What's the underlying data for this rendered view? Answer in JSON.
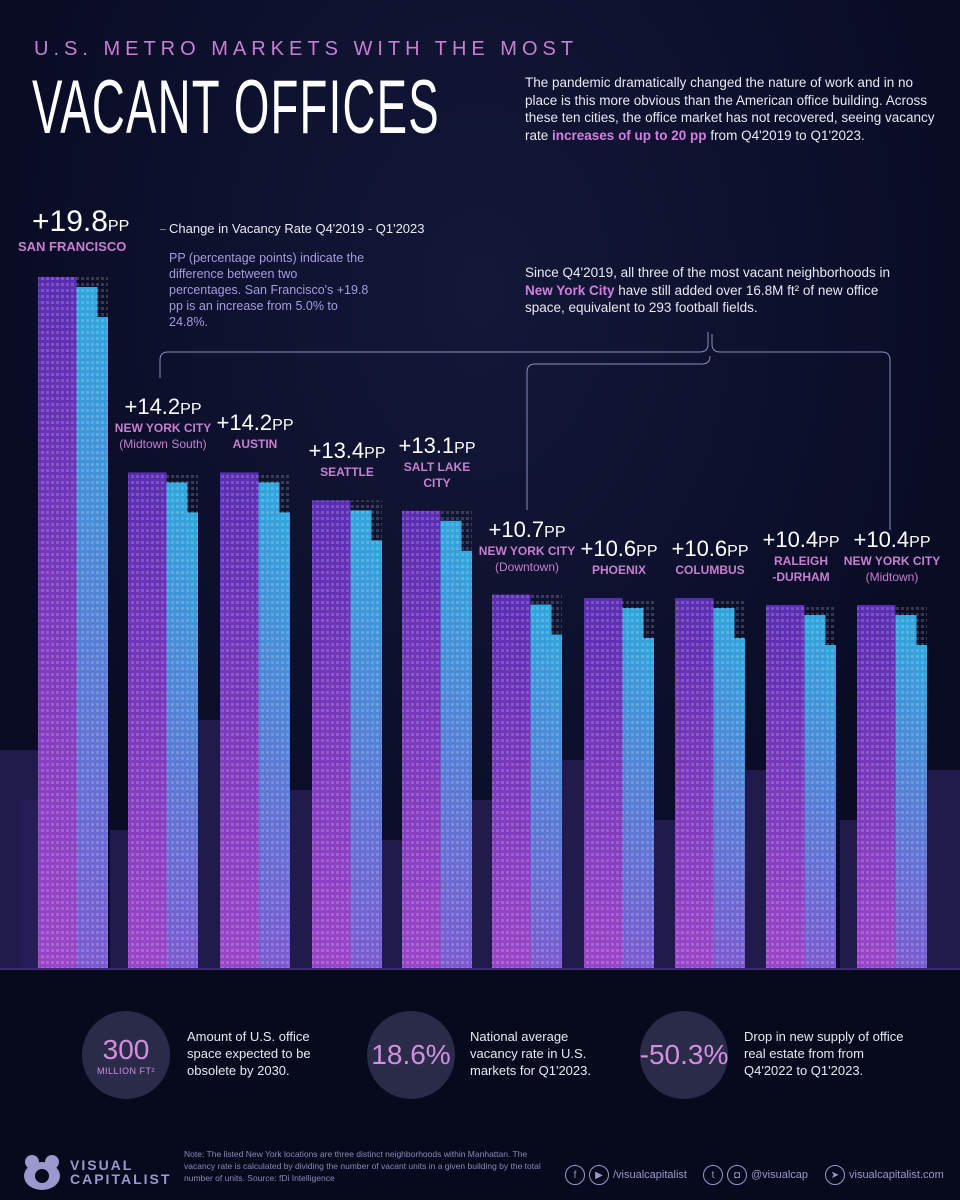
{
  "header": {
    "supertitle": "U.S. METRO MARKETS WITH THE MOST",
    "title": "VACANT OFFICES",
    "intro_pre": "The pandemic dramatically changed the nature of work and in no place is this more obvious than the American office building. Across these ten cities, the office market has not recovered, seeing vacancy rate ",
    "intro_highlight": "increases of up to 20 pp",
    "intro_post": " from Q4'2019 to Q1'2023."
  },
  "legend": {
    "label": "Change in Vacancy Rate Q4'2019 - Q1'2023",
    "pp_note": "PP (percentage points) indicate the difference between two percentages. San Francisco's +19.8 pp is an increase from 5.0% to 24.8%."
  },
  "nyc_note": {
    "pre": "Since Q4'2019, all three of the most vacant neighborhoods in ",
    "highlight": "New York City",
    "post": " have still added over 16.8M ft² of new office space, equivalent to 293 football fields."
  },
  "chart_data": {
    "type": "bar",
    "title": "U.S. Metro Markets with the Most Vacant Offices",
    "ylabel": "Change in Vacancy Rate Q4'2019 - Q1'2023",
    "unit": "pp",
    "ylim": [
      0,
      20
    ],
    "grid": false,
    "categories": [
      {
        "name": "SAN FRANCISCO",
        "sub": ""
      },
      {
        "name": "NEW YORK CITY",
        "sub": "(Midtown South)"
      },
      {
        "name": "AUSTIN",
        "sub": ""
      },
      {
        "name": "SEATTLE",
        "sub": ""
      },
      {
        "name": "SALT LAKE",
        "sub": "CITY"
      },
      {
        "name": "NEW YORK CITY",
        "sub": "(Downtown)"
      },
      {
        "name": "PHOENIX",
        "sub": ""
      },
      {
        "name": "COLUMBUS",
        "sub": ""
      },
      {
        "name": "RALEIGH",
        "sub": "-DURHAM"
      },
      {
        "name": "NEW YORK CITY",
        "sub": "(Midtown)"
      }
    ],
    "values": [
      19.8,
      14.2,
      14.2,
      13.4,
      13.1,
      10.7,
      10.6,
      10.6,
      10.4,
      10.4
    ],
    "labels": [
      "+19.8",
      "+14.2",
      "+14.2",
      "+13.4",
      "+13.1",
      "+10.7",
      "+10.6",
      "+10.6",
      "+10.4",
      "+10.4"
    ],
    "colors": {
      "left": "#5b2db3",
      "right": "#2fa6dc",
      "bottom": "#9a45c8",
      "label": "#c77fd0"
    }
  },
  "stats": [
    {
      "value": "300",
      "unit": "MILLION FT²",
      "text": "Amount of U.S. office space expected to be obsolete by 2030."
    },
    {
      "value": "18.6%",
      "unit": "",
      "text": "National average vacancy rate in U.S. markets for Q1'2023."
    },
    {
      "value": "-50.3%",
      "unit": "",
      "text": "Drop in new supply of office real estate from from Q4'2022 to Q1'2023."
    }
  ],
  "footer": {
    "logo_line1": "VISUAL",
    "logo_line2": "CAPITALIST",
    "note": "Note: The listed New York locations are three distinct neighborhoods within Manhattan. The vacancy rate is calculated by dividing the number of vacant units in a given building by the total number of units.  Source: fDi Intelligence",
    "social1": "/visualcapitalist",
    "social2": "@visualcap",
    "website": "visualcapitalist.com"
  }
}
